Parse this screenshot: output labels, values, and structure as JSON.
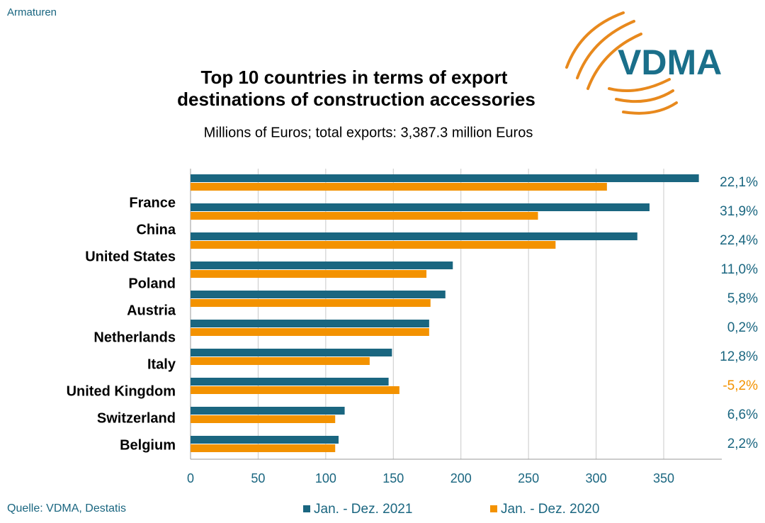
{
  "chart_data": {
    "type": "hbar",
    "header": "Armaturen",
    "logo": "VDMA",
    "title": [
      "Top 10 countries in terms of export",
      "destinations of construction accessories"
    ],
    "subtitle": "Millions of Euros; total exports: 3,387.3 million Euros",
    "source": "Quelle: VDMA, Destatis",
    "categories": [
      "France",
      "China",
      "United States",
      "Poland",
      "Austria",
      "Netherlands",
      "Italy",
      "United Kingdom",
      "Switzerland",
      "Belgium"
    ],
    "series": [
      {
        "name": "Jan. - Dez. 2021",
        "color": "#1a6680",
        "values": [
          376,
          339.5,
          330.5,
          194,
          188.5,
          176.5,
          149,
          146.5,
          114,
          109.5
        ]
      },
      {
        "name": "Jan. - Dez. 2020",
        "color": "#f39200",
        "values": [
          308,
          257,
          270,
          174.5,
          177.5,
          176.5,
          132.5,
          154.5,
          107,
          107
        ]
      }
    ],
    "growth_labels": [
      "22,1%",
      "31,9%",
      "22,4%",
      "11,0%",
      "5,8%",
      "0,2%",
      "12,8%",
      "-5,2%",
      "6,6%",
      "2,2%"
    ],
    "xlim": [
      0,
      393
    ],
    "xticks": [
      0,
      50,
      100,
      150,
      200,
      250,
      300,
      350
    ],
    "grid": true
  }
}
